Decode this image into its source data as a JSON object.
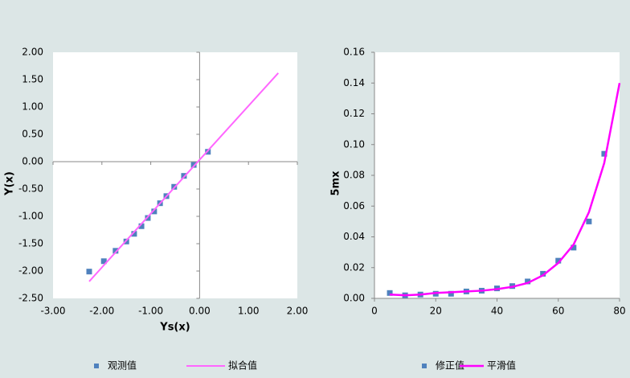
{
  "chart_data": [
    {
      "type": "scatter",
      "xlabel": "Ys(x)",
      "ylabel": "Y(x)",
      "xlim": [
        -3,
        2
      ],
      "xticks": [
        {
          "value": -3,
          "label": "-3.00"
        },
        {
          "value": -2,
          "label": "-2.00"
        },
        {
          "value": -1,
          "label": "-1.00"
        },
        {
          "value": 0,
          "label": "0.00"
        },
        {
          "value": 1,
          "label": "1.00"
        },
        {
          "value": 2,
          "label": "2.00"
        }
      ],
      "ylim": [
        -2.5,
        2
      ],
      "yticks": [
        {
          "value": -2.5,
          "label": "-2.50"
        },
        {
          "value": -2,
          "label": "-2.00"
        },
        {
          "value": -1.5,
          "label": "-1.50"
        },
        {
          "value": -1,
          "label": "-1.00"
        },
        {
          "value": -0.5,
          "label": "-0.50"
        },
        {
          "value": 0,
          "label": "0.00"
        },
        {
          "value": 0.5,
          "label": "0.50"
        },
        {
          "value": 1,
          "label": "1.00"
        },
        {
          "value": 1.5,
          "label": "1.50"
        },
        {
          "value": 2,
          "label": "2.00"
        }
      ],
      "series": [
        {
          "name": "观测值",
          "kind": "marker",
          "color": "#4f81bd",
          "x": [
            -2.26,
            -1.96,
            -1.72,
            -1.5,
            -1.34,
            -1.19,
            -1.06,
            -0.93,
            -0.81,
            -0.68,
            -0.52,
            -0.32,
            -0.12,
            0.17
          ],
          "values": [
            -2.01,
            -1.82,
            -1.63,
            -1.46,
            -1.32,
            -1.18,
            -1.03,
            -0.91,
            -0.76,
            -0.63,
            -0.46,
            -0.26,
            -0.06,
            0.18
          ]
        },
        {
          "name": "拟合值",
          "kind": "line",
          "color": "#ff66ff",
          "x": [
            -2.26,
            1.61
          ],
          "values": [
            -2.19,
            1.62
          ]
        }
      ]
    },
    {
      "type": "scatter",
      "ylabel": "5mx",
      "xlim": [
        0,
        80
      ],
      "xticks": [
        0,
        20,
        40,
        60,
        80
      ],
      "ylim": [
        0,
        0.16
      ],
      "yticks": [
        {
          "value": 0,
          "label": "0.00"
        },
        {
          "value": 0.02,
          "label": "0.02"
        },
        {
          "value": 0.04,
          "label": "0.04"
        },
        {
          "value": 0.06,
          "label": "0.06"
        },
        {
          "value": 0.08,
          "label": "0.08"
        },
        {
          "value": 0.1,
          "label": "0.10"
        },
        {
          "value": 0.12,
          "label": "0.12"
        },
        {
          "value": 0.14,
          "label": "0.14"
        },
        {
          "value": 0.16,
          "label": "0.16"
        }
      ],
      "series": [
        {
          "name": "修正值",
          "kind": "marker",
          "color": "#4f81bd",
          "x": [
            5,
            10,
            15,
            20,
            25,
            30,
            35,
            40,
            45,
            50,
            55,
            60,
            65,
            70,
            75
          ],
          "values": [
            0.0035,
            0.002,
            0.0025,
            0.003,
            0.003,
            0.0045,
            0.005,
            0.0065,
            0.008,
            0.011,
            0.016,
            0.0245,
            0.033,
            0.05,
            0.094
          ]
        },
        {
          "name": "平滑值",
          "kind": "line",
          "color": "#ff00ff",
          "x": [
            5,
            10,
            15,
            20,
            25,
            30,
            35,
            40,
            45,
            50,
            55,
            60,
            65,
            70,
            75,
            80
          ],
          "values": [
            0.0025,
            0.002,
            0.0025,
            0.0035,
            0.004,
            0.0045,
            0.005,
            0.006,
            0.0075,
            0.01,
            0.015,
            0.023,
            0.035,
            0.056,
            0.088,
            0.14
          ]
        }
      ]
    }
  ]
}
